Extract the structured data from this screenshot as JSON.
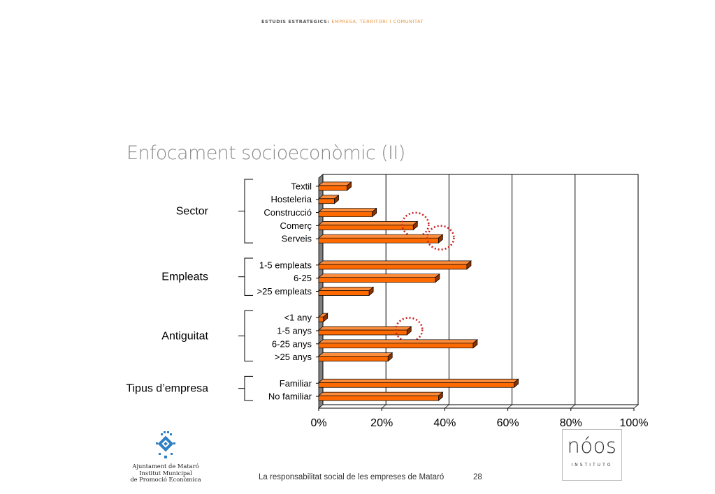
{
  "header": {
    "brand": "ESTUDIS ESTRATEGICS:",
    "tagline": "EMPRESA, TERRITORI I COMUNITAT"
  },
  "slide": {
    "title": "Enfocament socioeconòmic (II)"
  },
  "colors": {
    "bar": "#ff6a00",
    "bar_dark": "#8a3300",
    "highlight": "#cc1f1f",
    "title": "#8a8a8a",
    "logo_blue": "#2f7fc2"
  },
  "chart_data": {
    "type": "bar",
    "orientation": "horizontal",
    "xlim": [
      0,
      100
    ],
    "x_ticks": [
      "0%",
      "20%",
      "40%",
      "60%",
      "80%",
      "100%"
    ],
    "grid": true,
    "style": "3d",
    "groups": [
      {
        "name": "Sector",
        "categories": [
          {
            "label": "Textil",
            "value": 9
          },
          {
            "label": "Hosteleria",
            "value": 5
          },
          {
            "label": "Construcció",
            "value": 17
          },
          {
            "label": "Comerç",
            "value": 30
          },
          {
            "label": "Serveis",
            "value": 38
          }
        ]
      },
      {
        "name": "Empleats",
        "categories": [
          {
            "label": "1-5 empleats",
            "value": 47
          },
          {
            "label": "6-25",
            "value": 37
          },
          {
            "label": ">25 empleats",
            "value": 16
          }
        ]
      },
      {
        "name": "Antiguitat",
        "categories": [
          {
            "label": "<1 any",
            "value": 1.5
          },
          {
            "label": "1-5 anys",
            "value": 28
          },
          {
            "label": "6-25 anys",
            "value": 49
          },
          {
            "label": ">25 anys",
            "value": 22
          }
        ]
      },
      {
        "name": "Tipus d’empresa",
        "categories": [
          {
            "label": "Familiar",
            "value": 62
          },
          {
            "label": "No familiar",
            "value": 38
          }
        ]
      }
    ],
    "highlighted": [
      "Comerç",
      "Serveis",
      "1-5 anys"
    ]
  },
  "footer": {
    "org_lines": [
      "Ajuntament de Mataró",
      "Institut Municipal",
      "de Promoció Econòmica"
    ],
    "caption": "La responsabilitat social de les empreses de Mataró",
    "page": "28",
    "partner_brand": "nóos",
    "partner_sub": "INSTITUTO"
  }
}
